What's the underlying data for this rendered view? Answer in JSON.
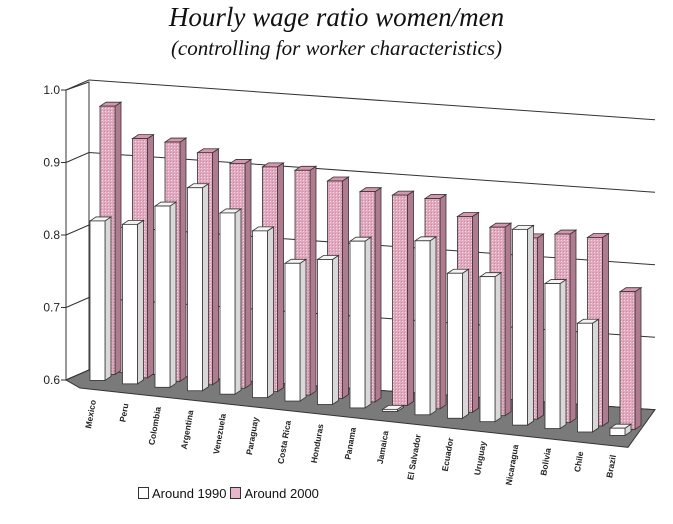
{
  "chart_data": {
    "type": "bar",
    "title": "Hourly wage ratio women/men",
    "subtitle": "(controlling for worker characteristics)",
    "categories": [
      "Mexico",
      "Peru",
      "Colombia",
      "Argentina",
      "Venezuela",
      "Paraguay",
      "Costa Rica",
      "Honduras",
      "Panama",
      "Jamaica",
      "El Salvador",
      "Ecuador",
      "Uruguay",
      "Nicaragua",
      "Bolivia",
      "Chile",
      "Brazil"
    ],
    "series": [
      {
        "name": "Around 1990",
        "values": [
          0.82,
          0.82,
          0.85,
          0.88,
          0.85,
          0.83,
          0.79,
          0.8,
          0.83,
          0.6,
          0.84,
          0.8,
          0.8,
          0.87,
          0.8,
          0.75,
          0.61
        ],
        "color": "#ffffff"
      },
      {
        "name": "Around 2000",
        "values": [
          0.97,
          0.93,
          0.93,
          0.92,
          0.91,
          0.91,
          0.91,
          0.9,
          0.89,
          0.89,
          0.89,
          0.87,
          0.86,
          0.85,
          0.86,
          0.86,
          0.79
        ],
        "color": "#e8b6c8"
      }
    ],
    "yticks": [
      "0.6",
      "0.7",
      "0.8",
      "0.9",
      "1.0"
    ],
    "ylim": [
      0.6,
      1.0
    ],
    "grid": true,
    "legend_position": "bottom-left"
  }
}
